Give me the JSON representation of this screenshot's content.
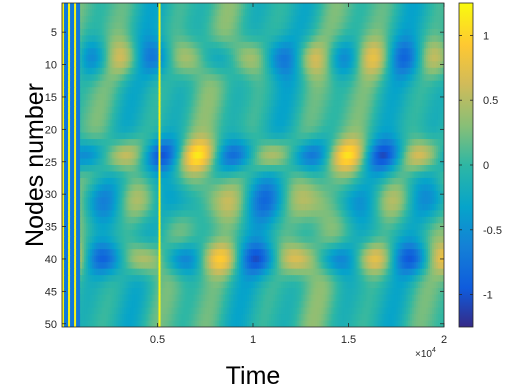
{
  "chart_data": {
    "type": "heatmap",
    "xlabel": "Time",
    "ylabel": "Nodes number",
    "x_exponent_label": "×10",
    "x_exponent_power": "4",
    "x_ticks": [
      {
        "value": 0.5,
        "label": "0.5"
      },
      {
        "value": 1,
        "label": "1"
      },
      {
        "value": 1.5,
        "label": "1.5"
      },
      {
        "value": 2,
        "label": "2"
      }
    ],
    "y_ticks": [
      {
        "value": 5,
        "label": "5"
      },
      {
        "value": 10,
        "label": "10"
      },
      {
        "value": 15,
        "label": "15"
      },
      {
        "value": 20,
        "label": "20"
      },
      {
        "value": 25,
        "label": "25"
      },
      {
        "value": 30,
        "label": "30"
      },
      {
        "value": 35,
        "label": "35"
      },
      {
        "value": 40,
        "label": "40"
      },
      {
        "value": 45,
        "label": "45"
      },
      {
        "value": 50,
        "label": "50"
      }
    ],
    "xlim": [
      0,
      20000
    ],
    "ylim": [
      0.5,
      50.5
    ],
    "y_reversed": true,
    "colorbar": {
      "colormap": "parula",
      "range": [
        -1.25,
        1.25
      ],
      "ticks": [
        {
          "value": 1,
          "label": "1"
        },
        {
          "value": 0.5,
          "label": "0.5"
        },
        {
          "value": 0,
          "label": "0"
        },
        {
          "value": -0.5,
          "label": "-0.5"
        },
        {
          "value": -1,
          "label": "-1"
        }
      ]
    },
    "grid": false
  }
}
